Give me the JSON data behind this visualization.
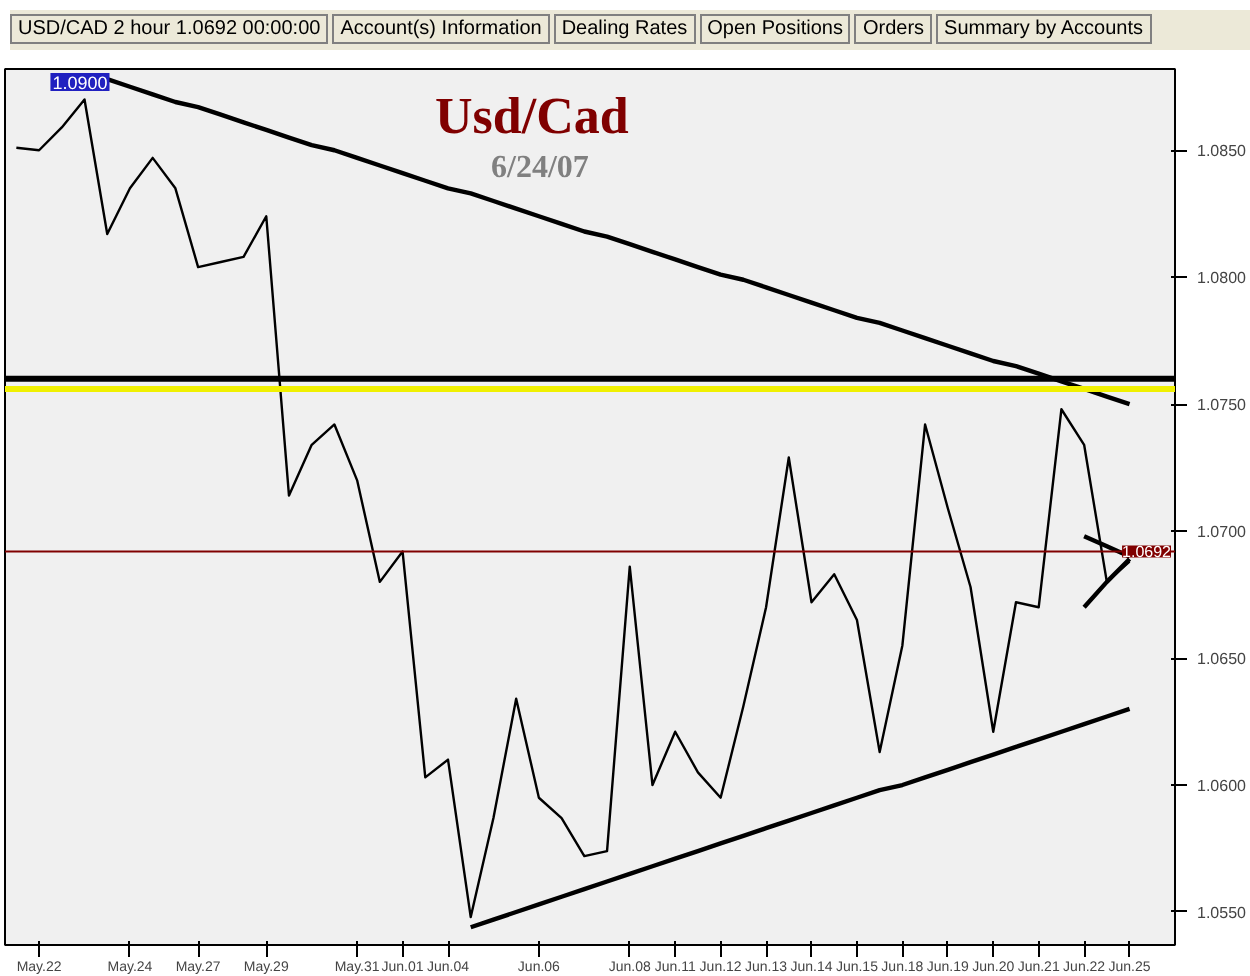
{
  "chart_data": {
    "type": "line",
    "title": "Usd/Cad",
    "subtitle": "6/24/07",
    "annotations": [
      "1.0900",
      "USD/CAD 2 hour 1.0692 00:00:00",
      "Account(s) Information",
      "Dealing Rates",
      "Open Positions",
      "Orders",
      "Summary by Accounts"
    ],
    "categories": [
      null,
      "May.22",
      null,
      null,
      null,
      "May.24",
      null,
      null,
      "May.27",
      null,
      null,
      "May.29",
      null,
      null,
      null,
      "May.31",
      null,
      "Jun.01",
      null,
      "Jun.04",
      null,
      null,
      null,
      "Jun.06",
      null,
      null,
      null,
      "Jun.08",
      null,
      "Jun.11",
      null,
      "Jun.12",
      null,
      "Jun.13",
      null,
      "Jun.14",
      null,
      "Jun.15",
      null,
      "Jun.18",
      null,
      "Jun.19",
      null,
      "Jun.20",
      null,
      "Jun.21",
      null,
      "Jun.22",
      null,
      "Jun.25"
    ],
    "ylim": [
      1.0537,
      1.0882
    ],
    "yticks": [
      {
        "value": 1.055,
        "label": "1.0550"
      },
      {
        "value": 1.06,
        "label": "1.0600"
      },
      {
        "value": 1.065,
        "label": "1.0650"
      },
      {
        "value": 1.07,
        "label": "1.0700"
      },
      {
        "value": 1.075,
        "label": "1.0750"
      },
      {
        "value": 1.08,
        "label": "1.0800"
      },
      {
        "value": 1.085,
        "label": "1.0850"
      }
    ],
    "grid": false,
    "line_style": "solid",
    "marker": "none",
    "ref_lines": [
      {
        "axis": "y",
        "value": 1.0692,
        "label": "1.0692",
        "color": "#800000"
      },
      {
        "axis": "y",
        "value": 1.0756,
        "color": "#f0f000"
      },
      {
        "axis": "y",
        "value": 1.076,
        "color": "#000000"
      }
    ],
    "series": [
      {
        "color": "#000000",
        "values": [
          1.0851,
          1.085,
          1.0859,
          1.087,
          1.0817,
          1.0835,
          1.0847,
          1.0835,
          1.0804,
          1.0806,
          1.0808,
          1.0824,
          1.0714,
          1.0734,
          1.0742,
          1.072,
          1.068,
          1.0692,
          1.0603,
          1.061,
          1.0548,
          1.0587,
          1.0634,
          1.0595,
          1.0587,
          1.0572,
          1.0574,
          1.0686,
          1.06,
          1.0621,
          1.0605,
          1.0595,
          1.0631,
          1.067,
          1.0729,
          1.0672,
          1.0683,
          1.0665,
          1.0613,
          1.0655,
          1.0742,
          1.0709,
          1.0678,
          1.0621,
          1.0672,
          1.067,
          1.0748,
          1.0734,
          1.068,
          1.0688
        ]
      },
      {
        "color": "#000000",
        "values": [
          null,
          null,
          null,
          null,
          1.0878,
          1.0875,
          1.0872,
          1.0869,
          1.0867,
          1.0864,
          1.0861,
          1.0858,
          1.0855,
          1.0852,
          1.085,
          1.0847,
          1.0844,
          1.0841,
          1.0838,
          1.0835,
          1.0833,
          1.083,
          1.0827,
          1.0824,
          1.0821,
          1.0818,
          1.0816,
          1.0813,
          1.081,
          1.0807,
          1.0804,
          1.0801,
          1.0799,
          1.0796,
          1.0793,
          1.079,
          1.0787,
          1.0784,
          1.0782,
          1.0779,
          1.0776,
          1.0773,
          1.077,
          1.0767,
          1.0765,
          1.0762,
          1.0759,
          1.0756,
          1.0753,
          1.075
        ]
      },
      {
        "color": "#000000",
        "values": [
          null,
          null,
          null,
          null,
          null,
          null,
          null,
          null,
          null,
          null,
          null,
          null,
          null,
          null,
          null,
          null,
          null,
          null,
          null,
          null,
          1.0544,
          1.0547,
          1.055,
          1.0553,
          1.0556,
          1.0559,
          1.0562,
          1.0565,
          1.0568,
          1.0571,
          1.0574,
          1.0577,
          1.058,
          1.0583,
          1.0586,
          1.0589,
          1.0592,
          1.0595,
          1.0598,
          1.06,
          1.0603,
          1.0606,
          1.0609,
          1.0612,
          1.0615,
          1.0618,
          1.0621,
          1.0624,
          1.0627,
          1.063
        ]
      },
      {
        "color": "#000000",
        "values": [
          null,
          null,
          null,
          null,
          null,
          null,
          null,
          null,
          null,
          null,
          null,
          null,
          null,
          null,
          null,
          null,
          null,
          null,
          null,
          null,
          null,
          null,
          null,
          null,
          null,
          null,
          null,
          null,
          null,
          null,
          null,
          null,
          null,
          null,
          null,
          null,
          null,
          null,
          null,
          null,
          null,
          null,
          null,
          null,
          null,
          null,
          null,
          1.0698,
          1.0694,
          1.069
        ]
      },
      {
        "color": "#000000",
        "values": [
          null,
          null,
          null,
          null,
          null,
          null,
          null,
          null,
          null,
          null,
          null,
          null,
          null,
          null,
          null,
          null,
          null,
          null,
          null,
          null,
          null,
          null,
          null,
          null,
          null,
          null,
          null,
          null,
          null,
          null,
          null,
          null,
          null,
          null,
          null,
          null,
          null,
          null,
          null,
          null,
          null,
          null,
          null,
          null,
          null,
          null,
          null,
          1.067,
          1.068,
          1.0689
        ]
      }
    ]
  }
}
